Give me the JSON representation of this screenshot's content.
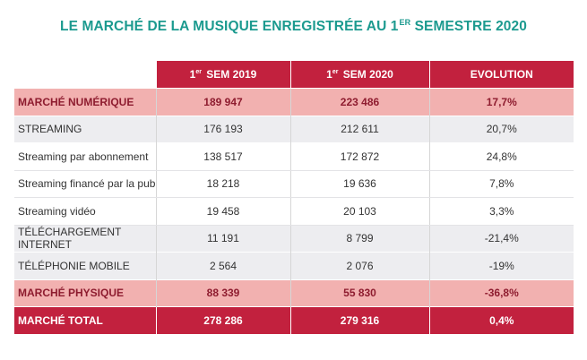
{
  "title": {
    "text": "LE MARCHÉ DE LA MUSIQUE ENREGISTRÉE AU 1",
    "sup": "ER",
    "rest": " SEMESTRE 2020"
  },
  "headers": [
    {
      "num": "1",
      "sup": "er",
      "text": " SEM 2019"
    },
    {
      "num": "1",
      "sup": "er",
      "text": " SEM 2020"
    },
    {
      "num": "",
      "sup": "",
      "text": "EVOLUTION"
    }
  ],
  "rows": [
    {
      "label": "MARCHÉ NUMÉRIQUE",
      "v2019": "189 947",
      "v2020": "223 486",
      "evolution": "17,7%"
    },
    {
      "label": "STREAMING",
      "v2019": "176 193",
      "v2020": "212 611",
      "evolution": "20,7%"
    },
    {
      "label": "Streaming par abonnement",
      "v2019": "138 517",
      "v2020": "172 872",
      "evolution": "24,8%"
    },
    {
      "label": "Streaming financé par la pub",
      "v2019": "18 218",
      "v2020": "19 636",
      "evolution": "7,8%"
    },
    {
      "label": "Streaming vidéo",
      "v2019": "19 458",
      "v2020": "20 103",
      "evolution": "3,3%"
    },
    {
      "label": "TÉLÉCHARGEMENT INTERNET",
      "v2019": "11 191",
      "v2020": "8 799",
      "evolution": "-21,4%"
    },
    {
      "label": "TÉLÉPHONIE MOBILE",
      "v2019": "2 564",
      "v2020": "2 076",
      "evolution": "-19%"
    },
    {
      "label": "MARCHÉ PHYSIQUE",
      "v2019": "88 339",
      "v2020": "55 830",
      "evolution": "-36,8%"
    },
    {
      "label": "MARCHÉ TOTAL",
      "v2019": "278 286",
      "v2020": "279 316",
      "evolution": "0,4%"
    }
  ],
  "colors": {
    "title": "#1c9a8f",
    "header": "#c2213e",
    "highlight": "#f2b1b0",
    "alt_row": "#ededf0"
  }
}
